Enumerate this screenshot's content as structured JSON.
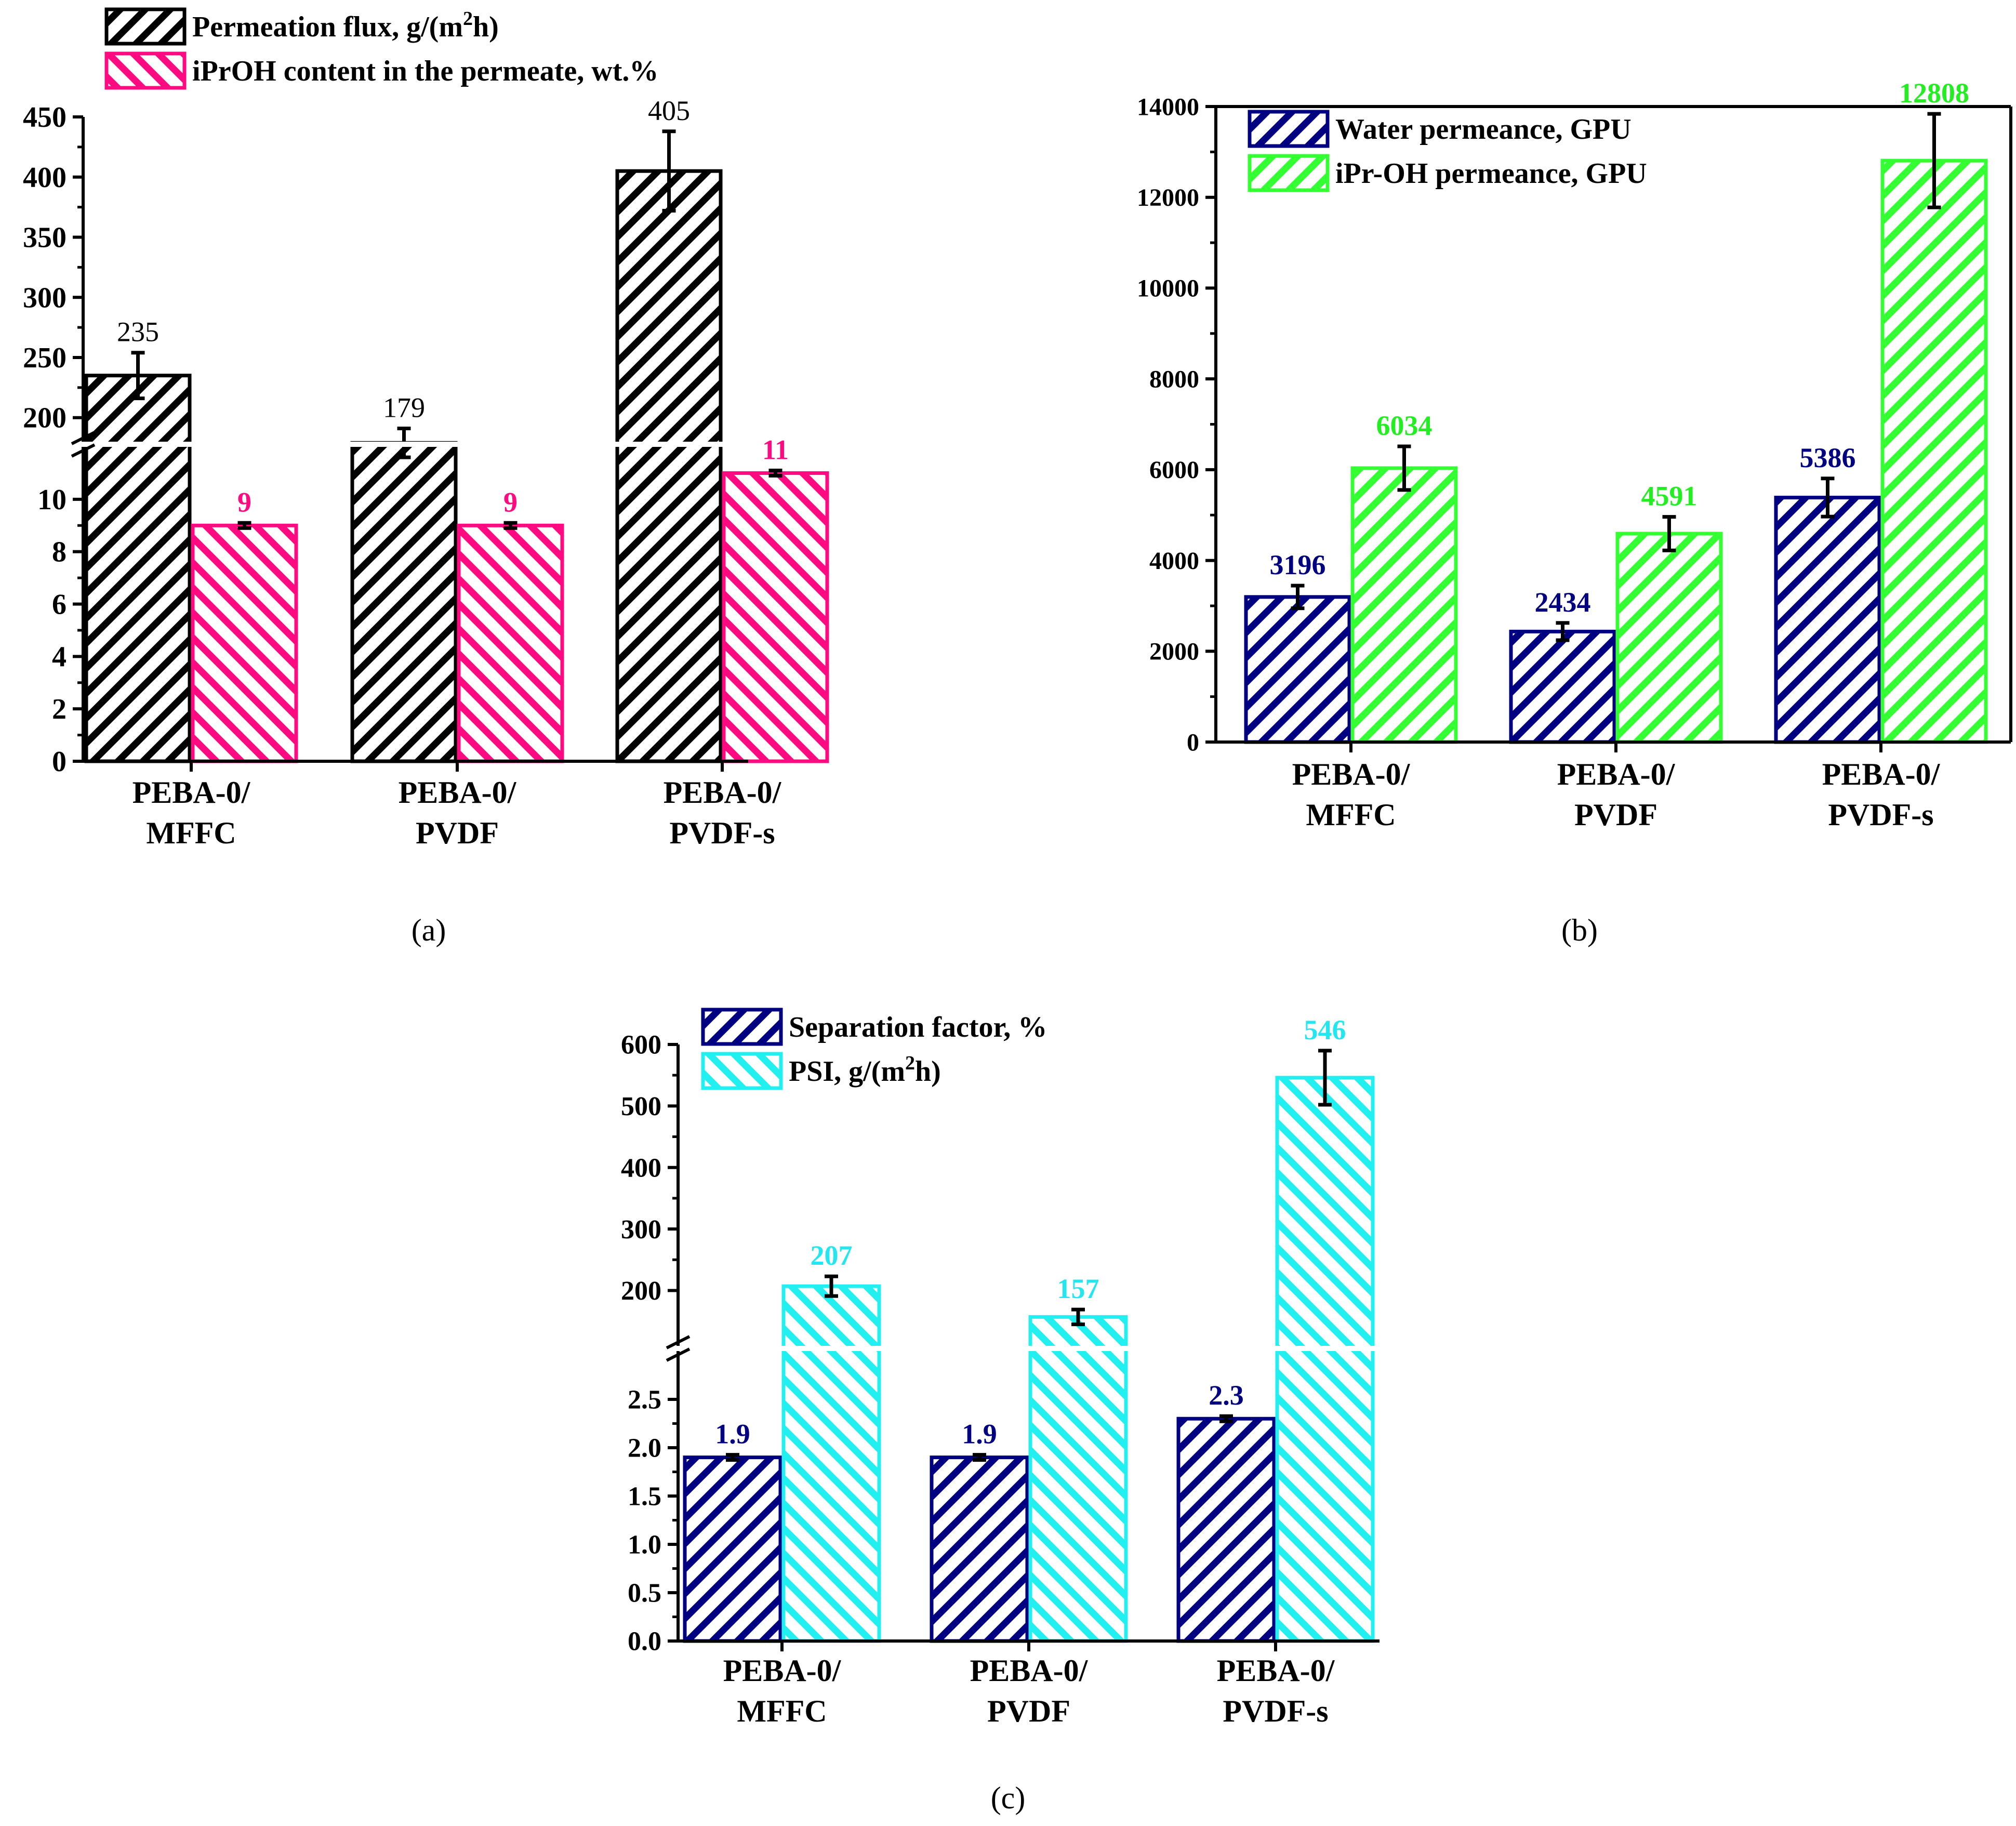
{
  "chart_data": [
    {
      "type": "bar",
      "panel_label": "(a)",
      "axis_break": true,
      "categories": [
        "PEBA-0/\nMFFC",
        "PEBA-0/\nPVDF",
        "PEBA-0/\nPVDF-s"
      ],
      "series": [
        {
          "name": "Permeation flux, g/(m²h)",
          "legend_main": "Permeation flux, g/(m",
          "legend_sup": "2",
          "legend_tail": "h)",
          "values": [
            235,
            179,
            405
          ],
          "errors": [
            19,
            12,
            33
          ],
          "labels": [
            "235",
            "179",
            "405"
          ],
          "color": "#000000",
          "label_color": "#000000",
          "hatch": "backward"
        },
        {
          "name": "iPrOH content in the permeate, wt.%",
          "legend_main": "iPrOH content in the permeate, wt.%",
          "values": [
            9,
            9,
            11
          ],
          "errors": [
            0.05,
            0.05,
            0.05
          ],
          "labels": [
            "9",
            "9",
            "11"
          ],
          "color": "#ff0a80",
          "label_color": "#ff0a80",
          "hatch": "forward"
        }
      ],
      "lower_axis": {
        "range": [
          0,
          12
        ],
        "ticks": [
          "0",
          "2",
          "4",
          "6",
          "8",
          "10"
        ]
      },
      "upper_axis": {
        "range": [
          180,
          450
        ],
        "ticks": [
          "200",
          "250",
          "300",
          "350",
          "400",
          "450"
        ]
      }
    },
    {
      "type": "bar",
      "panel_label": "(b)",
      "axis_break": false,
      "categories": [
        "PEBA-0/\nMFFC",
        "PEBA-0/\nPVDF",
        "PEBA-0/\nPVDF-s"
      ],
      "series": [
        {
          "name": "Water permeance, GPU",
          "legend_main": "Water permeance, GPU",
          "values": [
            3196,
            2434,
            5386
          ],
          "errors": [
            250,
            190,
            420
          ],
          "labels": [
            "3196",
            "2434",
            "5386"
          ],
          "color": "#000080",
          "label_color": "#000080",
          "hatch": "backward"
        },
        {
          "name": "iPr-OH permeance, GPU",
          "legend_main": "iPr-OH permeance, GPU",
          "values": [
            6034,
            4591,
            12808
          ],
          "errors": [
            480,
            370,
            1030
          ],
          "labels": [
            "6034",
            "4591",
            "12808"
          ],
          "color": "#33ff33",
          "label_color": "#22ee22",
          "hatch": "backward"
        }
      ],
      "y_axis": {
        "range": [
          0,
          14000
        ],
        "ticks": [
          "0",
          "2000",
          "4000",
          "6000",
          "8000",
          "10000",
          "12000",
          "14000"
        ]
      }
    },
    {
      "type": "bar",
      "panel_label": "(c)",
      "axis_break": true,
      "categories": [
        "PEBA-0/\nMFFC",
        "PEBA-0/\nPVDF",
        "PEBA-0/\nPVDF-s"
      ],
      "series": [
        {
          "name": "Separation factor, %",
          "legend_main": "Separation factor, %",
          "values": [
            1.9,
            1.9,
            2.3
          ],
          "errors": [
            0.02,
            0.02,
            0.02
          ],
          "labels": [
            "1.9",
            "1.9",
            "2.3"
          ],
          "color": "#000080",
          "label_color": "#000080",
          "hatch": "backward"
        },
        {
          "name": "PSI, g/(m²h)",
          "legend_main": "PSI, g/(m",
          "legend_sup": "2",
          "legend_tail": "h)",
          "values": [
            207,
            157,
            546
          ],
          "errors": [
            16,
            12,
            44
          ],
          "labels": [
            "207",
            "157",
            "546"
          ],
          "color": "#22f0f0",
          "label_color": "#22e6f0",
          "hatch": "forward"
        }
      ],
      "lower_axis": {
        "range": [
          0,
          3.0
        ],
        "ticks": [
          "0.0",
          "0.5",
          "1.0",
          "1.5",
          "2.0",
          "2.5"
        ]
      },
      "upper_axis": {
        "range": [
          110,
          600
        ],
        "ticks": [
          "200",
          "300",
          "400",
          "500",
          "600"
        ]
      }
    }
  ]
}
